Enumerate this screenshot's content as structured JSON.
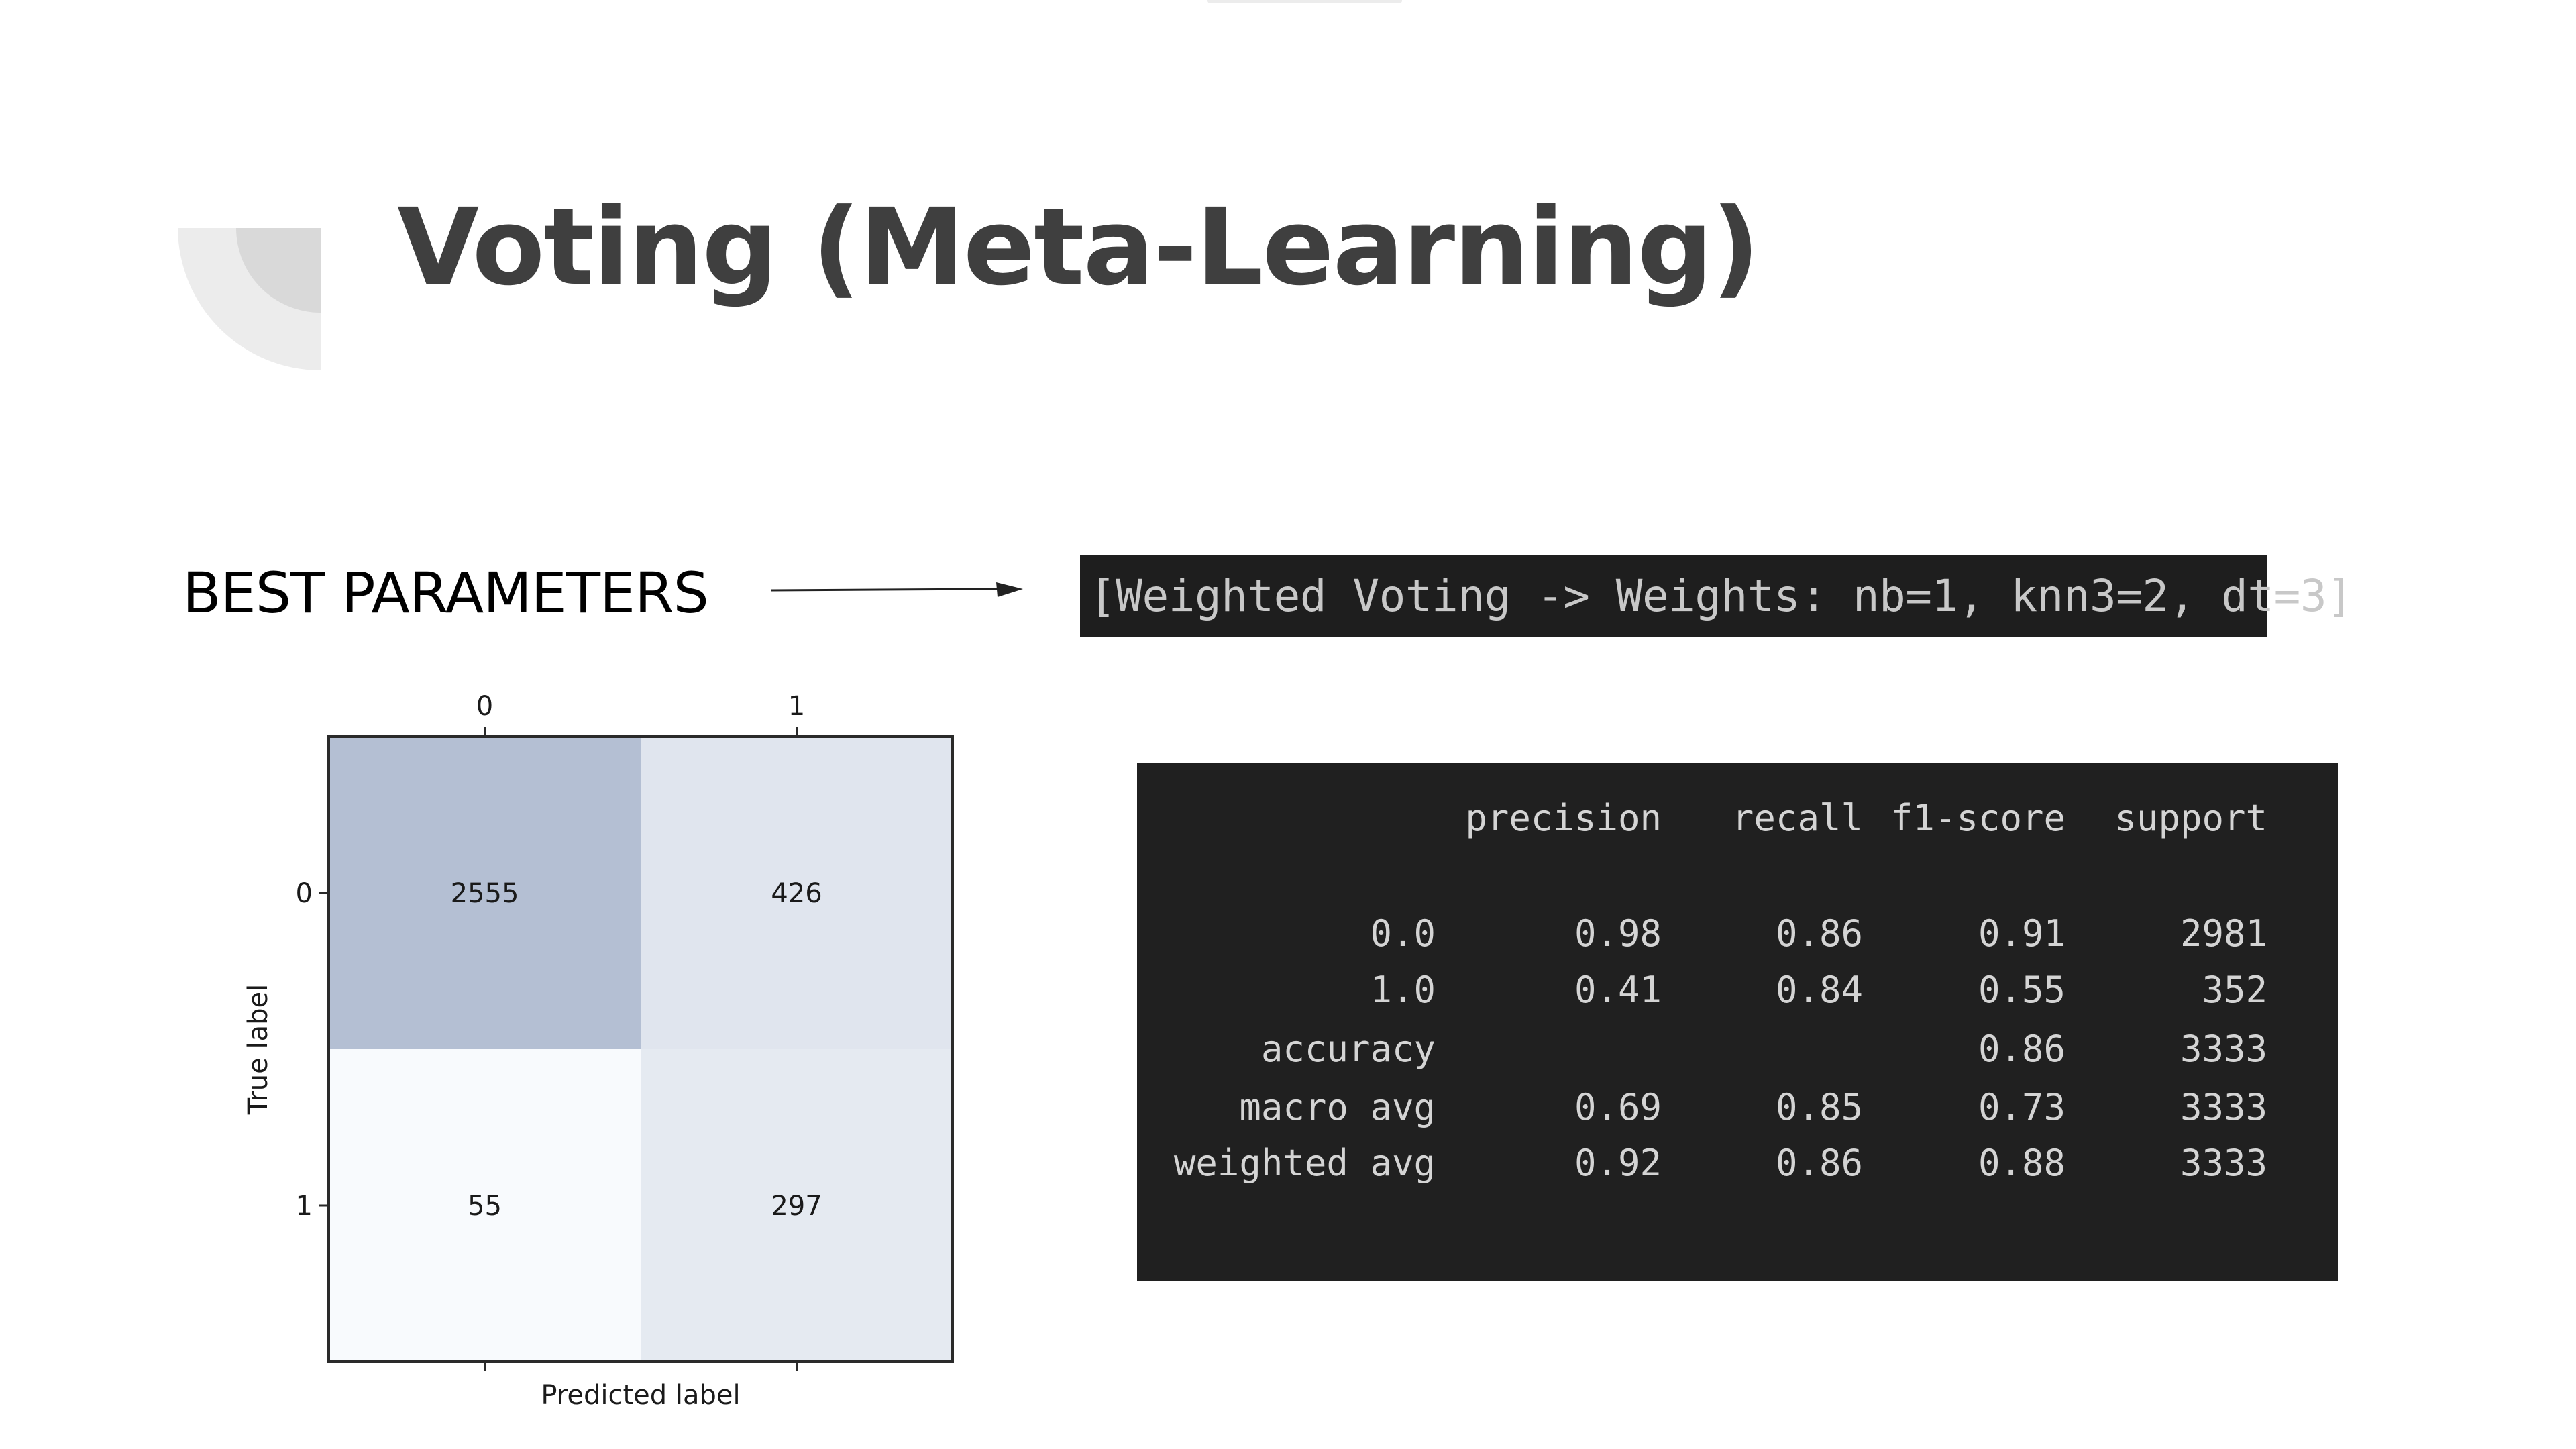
{
  "slide": {
    "title": "Voting (Meta-Learning)",
    "best_label": "BEST PARAMETERS",
    "param_text": "[Weighted Voting -> Weights: nb=1, knn3=2, dt=3]"
  },
  "colors": {
    "title": "#3f3f3f",
    "code_bg": "#1e1e1e",
    "code_text": "#d4d4d4",
    "cm_high": "#b4bfd3",
    "cm_low": "#f2f6fb",
    "cm_lowest": "#f8fafd"
  },
  "chart_data": {
    "type": "heatmap",
    "xlabel": "Predicted label",
    "ylabel": "True label",
    "x_ticks": [
      "0",
      "1"
    ],
    "y_ticks": [
      "0",
      "1"
    ],
    "matrix": [
      [
        2555,
        426
      ],
      [
        55,
        297
      ]
    ]
  },
  "report": {
    "headers": [
      "precision",
      "recall",
      "f1-score",
      "support"
    ],
    "rows": [
      {
        "label": "0.0",
        "precision": "0.98",
        "recall": "0.86",
        "f1": "0.91",
        "support": "2981"
      },
      {
        "label": "1.0",
        "precision": "0.41",
        "recall": "0.84",
        "f1": "0.55",
        "support": "352"
      },
      {
        "label": "accuracy",
        "precision": "",
        "recall": "",
        "f1": "0.86",
        "support": "3333"
      },
      {
        "label": "macro avg",
        "precision": "0.69",
        "recall": "0.85",
        "f1": "0.73",
        "support": "3333"
      },
      {
        "label": "weighted avg",
        "precision": "0.92",
        "recall": "0.86",
        "f1": "0.88",
        "support": "3333"
      }
    ]
  }
}
